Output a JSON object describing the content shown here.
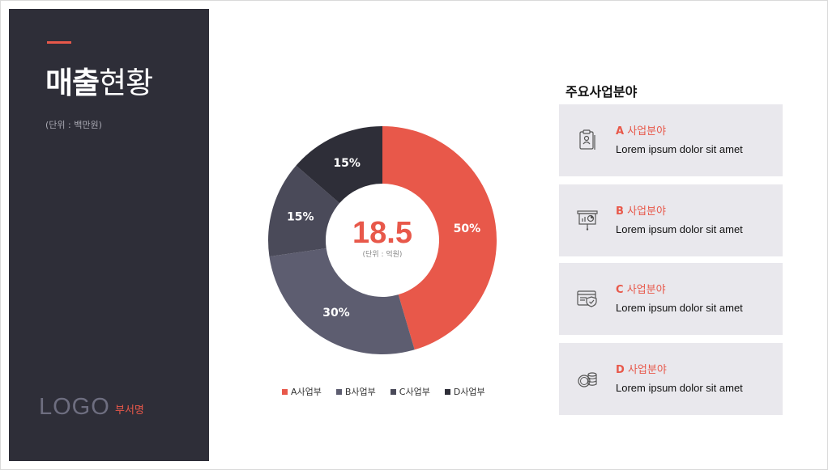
{
  "page": {
    "title_bold": "매출",
    "title_light": "현황",
    "unit_label": "(단위 : 백만원)",
    "logo": "LOGO",
    "department": "부서명",
    "accent_color": "#e8584a",
    "sidebar_color": "#2e2e38"
  },
  "chart_data": {
    "type": "pie",
    "donut": true,
    "center_value": "18.5",
    "center_unit": "(단위 : 억원)",
    "slices": [
      {
        "name": "A사업부",
        "value": 50,
        "label": "50%",
        "color": "#e8584a"
      },
      {
        "name": "B사업부",
        "value": 30,
        "label": "30%",
        "color": "#5d5d70"
      },
      {
        "name": "C사업부",
        "value": 15,
        "label": "15%",
        "color": "#4a4a59"
      },
      {
        "name": "D사업부",
        "value": 15,
        "label": "15%",
        "color": "#2e2e38"
      }
    ],
    "legend_position": "bottom"
  },
  "business": {
    "title": "주요사업분야",
    "items": [
      {
        "letter": "A",
        "name": "사업분야",
        "desc": "Lorem ipsum dolor sit amet",
        "icon": "clipboard-id-icon"
      },
      {
        "letter": "B",
        "name": "사업분야",
        "desc": "Lorem ipsum dolor sit amet",
        "icon": "presentation-board-icon"
      },
      {
        "letter": "C",
        "name": "사업분야",
        "desc": "Lorem ipsum dolor sit amet",
        "icon": "browser-shield-icon"
      },
      {
        "letter": "D",
        "name": "사업분야",
        "desc": "Lorem ipsum dolor sit amet",
        "icon": "coins-icon"
      }
    ]
  }
}
